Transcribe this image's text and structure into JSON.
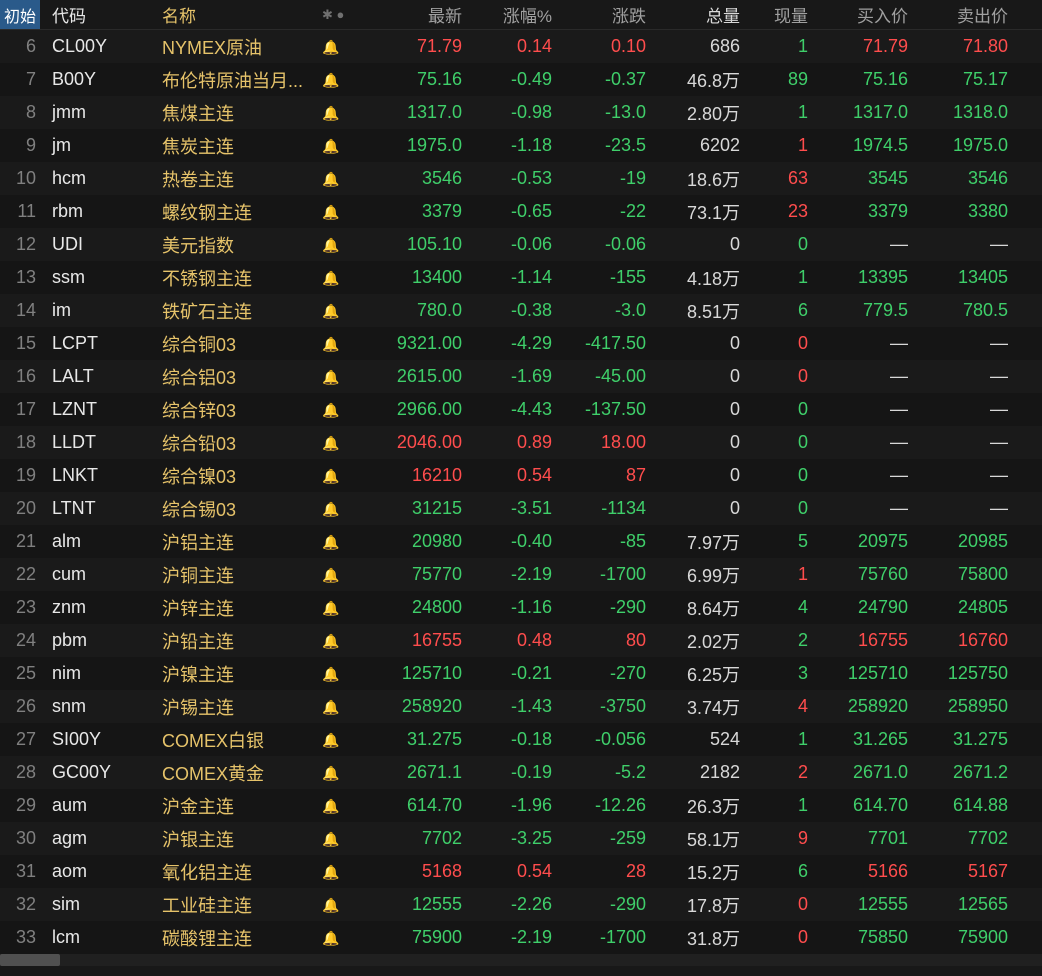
{
  "colors": {
    "background": "#181818",
    "row_odd": "#1a1a1a",
    "row_even": "#151515",
    "text_up": "#ff4d4d",
    "text_down": "#3fcf6a",
    "text_name": "#e6c36a",
    "text_code": "#e8e8e8",
    "text_header": "#a0a0a0",
    "bell_inactive": "#4a4a4a",
    "bell_active": "#ff5a1f",
    "header_start_bg": "#2a5a8a"
  },
  "header": {
    "start": "初始",
    "code": "代码",
    "name": "名称",
    "alert_icons": "✱ ●",
    "last": "最新",
    "pct": "涨幅%",
    "chg": "涨跌",
    "vol": "总量",
    "cur": "现量",
    "bid": "买入价",
    "ask": "卖出价"
  },
  "rows": [
    {
      "idx": "6",
      "code": "CL00Y",
      "name": "NYMEX原油",
      "bell": false,
      "last": "71.79",
      "last_c": "red",
      "pct": "0.14",
      "pct_c": "red",
      "chg": "0.10",
      "chg_c": "red",
      "vol": "686",
      "cur": "1",
      "cur_c": "green",
      "bid": "71.79",
      "bid_c": "red",
      "ask": "71.80",
      "ask_c": "red"
    },
    {
      "idx": "7",
      "code": "B00Y",
      "name": "布伦特原油当月...",
      "bell": false,
      "last": "75.16",
      "last_c": "green",
      "pct": "-0.49",
      "pct_c": "green",
      "chg": "-0.37",
      "chg_c": "green",
      "vol": "46.8万",
      "cur": "89",
      "cur_c": "green",
      "bid": "75.16",
      "bid_c": "green",
      "ask": "75.17",
      "ask_c": "green"
    },
    {
      "idx": "8",
      "code": "jmm",
      "name": "焦煤主连",
      "bell": false,
      "last": "1317.0",
      "last_c": "green",
      "pct": "-0.98",
      "pct_c": "green",
      "chg": "-13.0",
      "chg_c": "green",
      "vol": "2.80万",
      "cur": "1",
      "cur_c": "green",
      "bid": "1317.0",
      "bid_c": "green",
      "ask": "1318.0",
      "ask_c": "green"
    },
    {
      "idx": "9",
      "code": "jm",
      "name": "焦炭主连",
      "bell": false,
      "last": "1975.0",
      "last_c": "green",
      "pct": "-1.18",
      "pct_c": "green",
      "chg": "-23.5",
      "chg_c": "green",
      "vol": "6202",
      "cur": "1",
      "cur_c": "red",
      "bid": "1974.5",
      "bid_c": "green",
      "ask": "1975.0",
      "ask_c": "green"
    },
    {
      "idx": "10",
      "code": "hcm",
      "name": "热卷主连",
      "bell": false,
      "last": "3546",
      "last_c": "green",
      "pct": "-0.53",
      "pct_c": "green",
      "chg": "-19",
      "chg_c": "green",
      "vol": "18.6万",
      "cur": "63",
      "cur_c": "red",
      "bid": "3545",
      "bid_c": "green",
      "ask": "3546",
      "ask_c": "green"
    },
    {
      "idx": "11",
      "code": "rbm",
      "name": "螺纹钢主连",
      "bell": false,
      "last": "3379",
      "last_c": "green",
      "pct": "-0.65",
      "pct_c": "green",
      "chg": "-22",
      "chg_c": "green",
      "vol": "73.1万",
      "cur": "23",
      "cur_c": "red",
      "bid": "3379",
      "bid_c": "green",
      "ask": "3380",
      "ask_c": "green"
    },
    {
      "idx": "12",
      "code": "UDI",
      "name": "美元指数",
      "bell": false,
      "last": "105.10",
      "last_c": "green",
      "pct": "-0.06",
      "pct_c": "green",
      "chg": "-0.06",
      "chg_c": "green",
      "vol": "0",
      "cur": "0",
      "cur_c": "green",
      "bid": "—",
      "bid_c": "neutral",
      "ask": "—",
      "ask_c": "neutral"
    },
    {
      "idx": "13",
      "code": "ssm",
      "name": "不锈钢主连",
      "bell": false,
      "last": "13400",
      "last_c": "green",
      "pct": "-1.14",
      "pct_c": "green",
      "chg": "-155",
      "chg_c": "green",
      "vol": "4.18万",
      "cur": "1",
      "cur_c": "green",
      "bid": "13395",
      "bid_c": "green",
      "ask": "13405",
      "ask_c": "green"
    },
    {
      "idx": "14",
      "code": "im",
      "name": "铁矿石主连",
      "bell": false,
      "last": "780.0",
      "last_c": "green",
      "pct": "-0.38",
      "pct_c": "green",
      "chg": "-3.0",
      "chg_c": "green",
      "vol": "8.51万",
      "cur": "6",
      "cur_c": "green",
      "bid": "779.5",
      "bid_c": "green",
      "ask": "780.5",
      "ask_c": "green"
    },
    {
      "idx": "15",
      "code": "LCPT",
      "name": "综合铜03",
      "bell": false,
      "last": "9321.00",
      "last_c": "green",
      "pct": "-4.29",
      "pct_c": "green",
      "chg": "-417.50",
      "chg_c": "green",
      "vol": "0",
      "cur": "0",
      "cur_c": "red",
      "bid": "—",
      "bid_c": "neutral",
      "ask": "—",
      "ask_c": "neutral"
    },
    {
      "idx": "16",
      "code": "LALT",
      "name": "综合铝03",
      "bell": false,
      "last": "2615.00",
      "last_c": "green",
      "pct": "-1.69",
      "pct_c": "green",
      "chg": "-45.00",
      "chg_c": "green",
      "vol": "0",
      "cur": "0",
      "cur_c": "red",
      "bid": "—",
      "bid_c": "neutral",
      "ask": "—",
      "ask_c": "neutral"
    },
    {
      "idx": "17",
      "code": "LZNT",
      "name": "综合锌03",
      "bell": false,
      "last": "2966.00",
      "last_c": "green",
      "pct": "-4.43",
      "pct_c": "green",
      "chg": "-137.50",
      "chg_c": "green",
      "vol": "0",
      "cur": "0",
      "cur_c": "green",
      "bid": "—",
      "bid_c": "neutral",
      "ask": "—",
      "ask_c": "neutral"
    },
    {
      "idx": "18",
      "code": "LLDT",
      "name": "综合铅03",
      "bell": false,
      "last": "2046.00",
      "last_c": "red",
      "pct": "0.89",
      "pct_c": "red",
      "chg": "18.00",
      "chg_c": "red",
      "vol": "0",
      "cur": "0",
      "cur_c": "green",
      "bid": "—",
      "bid_c": "neutral",
      "ask": "—",
      "ask_c": "neutral"
    },
    {
      "idx": "19",
      "code": "LNKT",
      "name": "综合镍03",
      "bell": false,
      "last": "16210",
      "last_c": "red",
      "pct": "0.54",
      "pct_c": "red",
      "chg": "87",
      "chg_c": "red",
      "vol": "0",
      "cur": "0",
      "cur_c": "green",
      "bid": "—",
      "bid_c": "neutral",
      "ask": "—",
      "ask_c": "neutral"
    },
    {
      "idx": "20",
      "code": "LTNT",
      "name": "综合锡03",
      "bell": false,
      "last": "31215",
      "last_c": "green",
      "pct": "-3.51",
      "pct_c": "green",
      "chg": "-1134",
      "chg_c": "green",
      "vol": "0",
      "cur": "0",
      "cur_c": "green",
      "bid": "—",
      "bid_c": "neutral",
      "ask": "—",
      "ask_c": "neutral"
    },
    {
      "idx": "21",
      "code": "alm",
      "name": "沪铝主连",
      "bell": false,
      "last": "20980",
      "last_c": "green",
      "pct": "-0.40",
      "pct_c": "green",
      "chg": "-85",
      "chg_c": "green",
      "vol": "7.97万",
      "cur": "5",
      "cur_c": "green",
      "bid": "20975",
      "bid_c": "green",
      "ask": "20985",
      "ask_c": "green"
    },
    {
      "idx": "22",
      "code": "cum",
      "name": "沪铜主连",
      "bell": true,
      "last": "75770",
      "last_c": "green",
      "pct": "-2.19",
      "pct_c": "green",
      "chg": "-1700",
      "chg_c": "green",
      "vol": "6.99万",
      "cur": "1",
      "cur_c": "red",
      "bid": "75760",
      "bid_c": "green",
      "ask": "75800",
      "ask_c": "green"
    },
    {
      "idx": "23",
      "code": "znm",
      "name": "沪锌主连",
      "bell": false,
      "last": "24800",
      "last_c": "green",
      "pct": "-1.16",
      "pct_c": "green",
      "chg": "-290",
      "chg_c": "green",
      "vol": "8.64万",
      "cur": "4",
      "cur_c": "green",
      "bid": "24790",
      "bid_c": "green",
      "ask": "24805",
      "ask_c": "green"
    },
    {
      "idx": "24",
      "code": "pbm",
      "name": "沪铅主连",
      "bell": false,
      "last": "16755",
      "last_c": "red",
      "pct": "0.48",
      "pct_c": "red",
      "chg": "80",
      "chg_c": "red",
      "vol": "2.02万",
      "cur": "2",
      "cur_c": "green",
      "bid": "16755",
      "bid_c": "red",
      "ask": "16760",
      "ask_c": "red"
    },
    {
      "idx": "25",
      "code": "nim",
      "name": "沪镍主连",
      "bell": false,
      "last": "125710",
      "last_c": "green",
      "pct": "-0.21",
      "pct_c": "green",
      "chg": "-270",
      "chg_c": "green",
      "vol": "6.25万",
      "cur": "3",
      "cur_c": "green",
      "bid": "125710",
      "bid_c": "green",
      "ask": "125750",
      "ask_c": "green"
    },
    {
      "idx": "26",
      "code": "snm",
      "name": "沪锡主连",
      "bell": false,
      "last": "258920",
      "last_c": "green",
      "pct": "-1.43",
      "pct_c": "green",
      "chg": "-3750",
      "chg_c": "green",
      "vol": "3.74万",
      "cur": "4",
      "cur_c": "red",
      "bid": "258920",
      "bid_c": "green",
      "ask": "258950",
      "ask_c": "green"
    },
    {
      "idx": "27",
      "code": "SI00Y",
      "name": "COMEX白银",
      "bell": true,
      "last": "31.275",
      "last_c": "green",
      "pct": "-0.18",
      "pct_c": "green",
      "chg": "-0.056",
      "chg_c": "green",
      "vol": "524",
      "cur": "1",
      "cur_c": "green",
      "bid": "31.265",
      "bid_c": "green",
      "ask": "31.275",
      "ask_c": "green"
    },
    {
      "idx": "28",
      "code": "GC00Y",
      "name": "COMEX黄金",
      "bell": false,
      "last": "2671.1",
      "last_c": "green",
      "pct": "-0.19",
      "pct_c": "green",
      "chg": "-5.2",
      "chg_c": "green",
      "vol": "2182",
      "cur": "2",
      "cur_c": "red",
      "bid": "2671.0",
      "bid_c": "green",
      "ask": "2671.2",
      "ask_c": "green"
    },
    {
      "idx": "29",
      "code": "aum",
      "name": "沪金主连",
      "bell": true,
      "last": "614.70",
      "last_c": "green",
      "pct": "-1.96",
      "pct_c": "green",
      "chg": "-12.26",
      "chg_c": "green",
      "vol": "26.3万",
      "cur": "1",
      "cur_c": "green",
      "bid": "614.70",
      "bid_c": "green",
      "ask": "614.88",
      "ask_c": "green"
    },
    {
      "idx": "30",
      "code": "agm",
      "name": "沪银主连",
      "bell": false,
      "last": "7702",
      "last_c": "green",
      "pct": "-3.25",
      "pct_c": "green",
      "chg": "-259",
      "chg_c": "green",
      "vol": "58.1万",
      "cur": "9",
      "cur_c": "red",
      "bid": "7701",
      "bid_c": "green",
      "ask": "7702",
      "ask_c": "green"
    },
    {
      "idx": "31",
      "code": "aom",
      "name": "氧化铝主连",
      "bell": false,
      "last": "5168",
      "last_c": "red",
      "pct": "0.54",
      "pct_c": "red",
      "chg": "28",
      "chg_c": "red",
      "vol": "15.2万",
      "cur": "6",
      "cur_c": "green",
      "bid": "5166",
      "bid_c": "red",
      "ask": "5167",
      "ask_c": "red"
    },
    {
      "idx": "32",
      "code": "sim",
      "name": "工业硅主连",
      "bell": false,
      "last": "12555",
      "last_c": "green",
      "pct": "-2.26",
      "pct_c": "green",
      "chg": "-290",
      "chg_c": "green",
      "vol": "17.8万",
      "cur": "0",
      "cur_c": "red",
      "bid": "12555",
      "bid_c": "green",
      "ask": "12565",
      "ask_c": "green"
    },
    {
      "idx": "33",
      "code": "lcm",
      "name": "碳酸锂主连",
      "bell": false,
      "last": "75900",
      "last_c": "green",
      "pct": "-2.19",
      "pct_c": "green",
      "chg": "-1700",
      "chg_c": "green",
      "vol": "31.8万",
      "cur": "0",
      "cur_c": "red",
      "bid": "75850",
      "bid_c": "green",
      "ask": "75900",
      "ask_c": "green"
    }
  ]
}
